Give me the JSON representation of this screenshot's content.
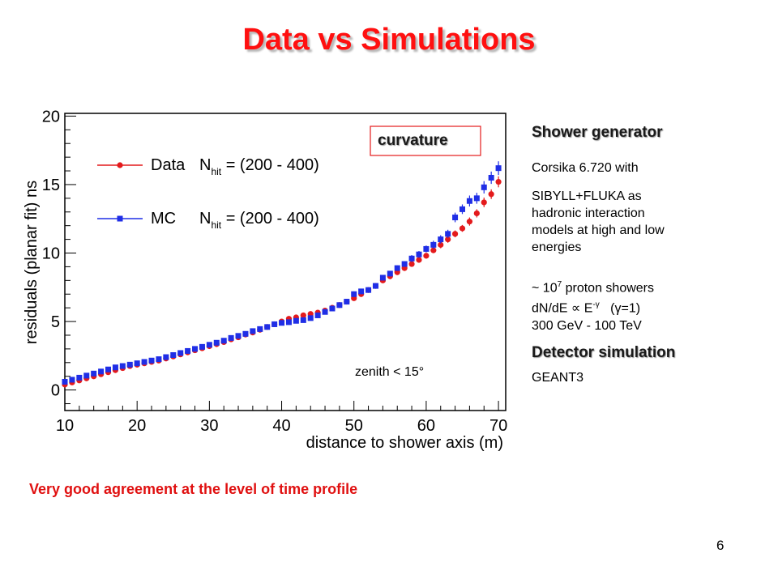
{
  "slide": {
    "title": "Data vs Simulations",
    "footer_note": "Very good agreement at the level of time profile",
    "page_number": "6"
  },
  "side_panel": {
    "shower_heading": "Shower generator",
    "corsika": "Corsika 6.720 with",
    "sibyll_line1": "SIBYLL+FLUKA as",
    "sibyll_line2": "hadronic interaction",
    "sibyll_line3": "models at high and low",
    "sibyll_line4": "energies",
    "showers_prefix": "~ 10",
    "showers_exp": "7",
    "showers_suffix": " proton showers",
    "spectrum_prefix": "dN/dE ∝ E",
    "spectrum_exp": "-γ",
    "spectrum_suffix": "(γ=1)",
    "energy_range": "300 GeV - 100 TeV",
    "detector_heading": "Detector simulation",
    "geant": "GEANT3"
  },
  "colors": {
    "data": "#e41a1c",
    "mc": "#1f2ee6",
    "title": "#ff1010"
  },
  "chart_data": {
    "type": "scatter",
    "ylabel": "residuals (planar fit) ns",
    "xlabel": "distance to shower axis (m)",
    "xlim": [
      10,
      71
    ],
    "ylim": [
      -1.5,
      20.2
    ],
    "xticks": [
      10,
      20,
      30,
      40,
      50,
      60,
      70
    ],
    "yticks": [
      0,
      5,
      10,
      15,
      20
    ],
    "annotation_box": "curvature",
    "annotation_text": "zenith < 15°",
    "legend_position": "top-left",
    "series": [
      {
        "name": "Data",
        "nhit_label": "N",
        "nhit_sub": "hit",
        "nhit_range": " = (200 - 400)",
        "marker": "circle",
        "x": [
          10,
          11,
          12,
          13,
          14,
          15,
          16,
          17,
          18,
          19,
          20,
          21,
          22,
          23,
          24,
          25,
          26,
          27,
          28,
          29,
          30,
          31,
          32,
          33,
          34,
          35,
          36,
          37,
          38,
          39,
          40,
          41,
          42,
          43,
          44,
          45,
          46,
          47,
          48,
          49,
          50,
          51,
          52,
          53,
          54,
          55,
          56,
          57,
          58,
          59,
          60,
          61,
          62,
          63,
          64,
          65,
          66,
          67,
          68,
          69,
          70
        ],
        "y": [
          0.4,
          0.55,
          0.7,
          0.85,
          1.0,
          1.15,
          1.3,
          1.45,
          1.6,
          1.75,
          1.85,
          1.95,
          2.05,
          2.15,
          2.3,
          2.45,
          2.6,
          2.75,
          2.9,
          3.05,
          3.2,
          3.35,
          3.5,
          3.7,
          3.85,
          4.05,
          4.2,
          4.4,
          4.6,
          4.8,
          5.0,
          5.2,
          5.3,
          5.45,
          5.55,
          5.65,
          5.8,
          6.0,
          6.2,
          6.45,
          6.7,
          7.0,
          7.3,
          7.6,
          8.0,
          8.3,
          8.6,
          8.9,
          9.2,
          9.5,
          9.8,
          10.2,
          10.6,
          11.0,
          11.4,
          11.8,
          12.3,
          12.9,
          13.7,
          14.3,
          15.2
        ],
        "yerr": [
          0.1,
          0.1,
          0.1,
          0.1,
          0.1,
          0.1,
          0.1,
          0.1,
          0.1,
          0.1,
          0.1,
          0.1,
          0.1,
          0.1,
          0.1,
          0.1,
          0.1,
          0.1,
          0.1,
          0.1,
          0.1,
          0.1,
          0.1,
          0.1,
          0.1,
          0.1,
          0.1,
          0.1,
          0.1,
          0.1,
          0.15,
          0.15,
          0.15,
          0.15,
          0.15,
          0.15,
          0.15,
          0.15,
          0.15,
          0.15,
          0.15,
          0.15,
          0.15,
          0.15,
          0.15,
          0.2,
          0.2,
          0.2,
          0.2,
          0.2,
          0.2,
          0.2,
          0.25,
          0.25,
          0.25,
          0.25,
          0.3,
          0.3,
          0.35,
          0.35,
          0.4
        ]
      },
      {
        "name": "MC",
        "nhit_label": "N",
        "nhit_sub": "hit",
        "nhit_range": " = (200 - 400)",
        "marker": "square",
        "x": [
          10,
          11,
          12,
          13,
          14,
          15,
          16,
          17,
          18,
          19,
          20,
          21,
          22,
          23,
          24,
          25,
          26,
          27,
          28,
          29,
          30,
          31,
          32,
          33,
          34,
          35,
          36,
          37,
          38,
          39,
          40,
          41,
          42,
          43,
          44,
          45,
          46,
          47,
          48,
          49,
          50,
          51,
          52,
          53,
          54,
          55,
          56,
          57,
          58,
          59,
          60,
          61,
          62,
          63,
          64,
          65,
          66,
          67,
          68,
          69,
          70
        ],
        "y": [
          0.6,
          0.75,
          0.9,
          1.05,
          1.2,
          1.35,
          1.5,
          1.65,
          1.75,
          1.85,
          1.95,
          2.05,
          2.15,
          2.25,
          2.4,
          2.55,
          2.7,
          2.85,
          3.0,
          3.15,
          3.3,
          3.45,
          3.6,
          3.8,
          3.95,
          4.1,
          4.3,
          4.45,
          4.6,
          4.8,
          4.9,
          4.95,
          5.05,
          5.1,
          5.25,
          5.45,
          5.7,
          5.95,
          6.2,
          6.45,
          7.0,
          7.2,
          7.3,
          7.6,
          8.2,
          8.5,
          8.9,
          9.2,
          9.6,
          9.9,
          10.3,
          10.6,
          11.0,
          11.4,
          12.6,
          13.2,
          13.8,
          14.0,
          14.8,
          15.5,
          16.2
        ],
        "yerr": [
          0.1,
          0.1,
          0.1,
          0.1,
          0.1,
          0.1,
          0.1,
          0.1,
          0.1,
          0.1,
          0.1,
          0.1,
          0.1,
          0.1,
          0.1,
          0.1,
          0.1,
          0.1,
          0.1,
          0.1,
          0.1,
          0.1,
          0.1,
          0.1,
          0.1,
          0.1,
          0.1,
          0.1,
          0.1,
          0.1,
          0.15,
          0.15,
          0.15,
          0.15,
          0.15,
          0.15,
          0.15,
          0.15,
          0.15,
          0.15,
          0.2,
          0.2,
          0.2,
          0.2,
          0.2,
          0.2,
          0.2,
          0.2,
          0.25,
          0.25,
          0.25,
          0.3,
          0.3,
          0.3,
          0.35,
          0.35,
          0.4,
          0.4,
          0.45,
          0.45,
          0.5
        ]
      }
    ]
  }
}
